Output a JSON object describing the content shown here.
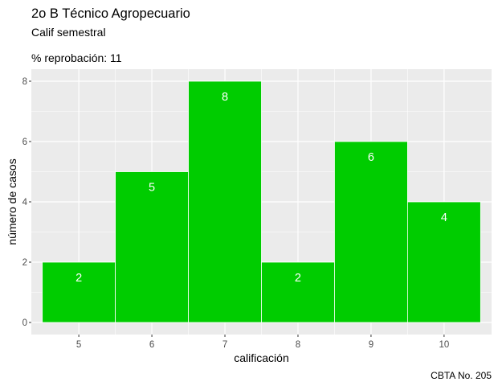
{
  "chart_data": {
    "type": "bar",
    "title": "2o B Técnico Agropecuario",
    "subtitle": "Calif semestral",
    "note": "% reprobación: 11",
    "xlabel": "calificación",
    "ylabel": "número de casos",
    "caption": "CBTA No. 205",
    "categories": [
      "5",
      "6",
      "7",
      "8",
      "9",
      "10"
    ],
    "values": [
      2,
      5,
      8,
      2,
      6,
      4
    ],
    "xlim": [
      4.35,
      10.65
    ],
    "ylim": [
      -0.4,
      8.4
    ],
    "yticks": [
      0,
      2,
      4,
      6,
      8
    ],
    "bar_color": "#00cc00",
    "panel_background": "#ebebeb",
    "grid": true,
    "legend": "none"
  }
}
